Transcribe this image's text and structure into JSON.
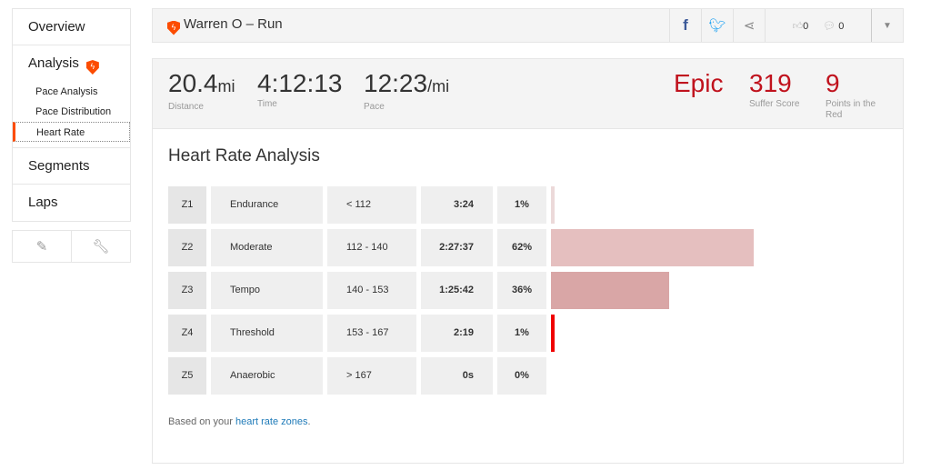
{
  "sidebar": {
    "overview": "Overview",
    "analysis": "Analysis",
    "sub": [
      "Pace Analysis",
      "Pace Distribution",
      "Heart Rate"
    ],
    "segments": "Segments",
    "laps": "Laps",
    "tools": [
      "pencil-icon",
      "wrench-icon"
    ]
  },
  "header": {
    "title": "Warren O – Run",
    "kudos": "0",
    "comments": "0"
  },
  "stats": {
    "distance": "20.4",
    "distance_unit": "mi",
    "distance_label": "Distance",
    "time": "4:12:13",
    "time_label": "Time",
    "pace": "12:23",
    "pace_unit": "/mi",
    "pace_label": "Pace",
    "effort": "Epic",
    "suffer": "319",
    "suffer_label": "Suffer Score",
    "red": "9",
    "red_label": "Points in the Red"
  },
  "analysis": {
    "title": "Heart Rate Analysis",
    "zones": [
      {
        "zone": "Z1",
        "name": "Endurance",
        "range": "< 112",
        "time": "3:24",
        "pct": "1%",
        "value": 1,
        "color": "#ecd9d9"
      },
      {
        "zone": "Z2",
        "name": "Moderate",
        "range": "112 - 140",
        "time": "2:27:37",
        "pct": "62%",
        "value": 62,
        "color": "#e5bfbf"
      },
      {
        "zone": "Z3",
        "name": "Tempo",
        "range": "140 - 153",
        "time": "1:25:42",
        "pct": "36%",
        "value": 36,
        "color": "#d9a6a6"
      },
      {
        "zone": "Z4",
        "name": "Threshold",
        "range": "153 - 167",
        "time": "2:19",
        "pct": "1%",
        "value": 1,
        "color": "#f00000"
      },
      {
        "zone": "Z5",
        "name": "Anaerobic",
        "range": "> 167",
        "time": "0s",
        "pct": "0%",
        "value": 0,
        "color": "#e5bfbf"
      }
    ],
    "footer_text": "Based on your ",
    "footer_link": "heart rate zones",
    "footer_end": "."
  }
}
